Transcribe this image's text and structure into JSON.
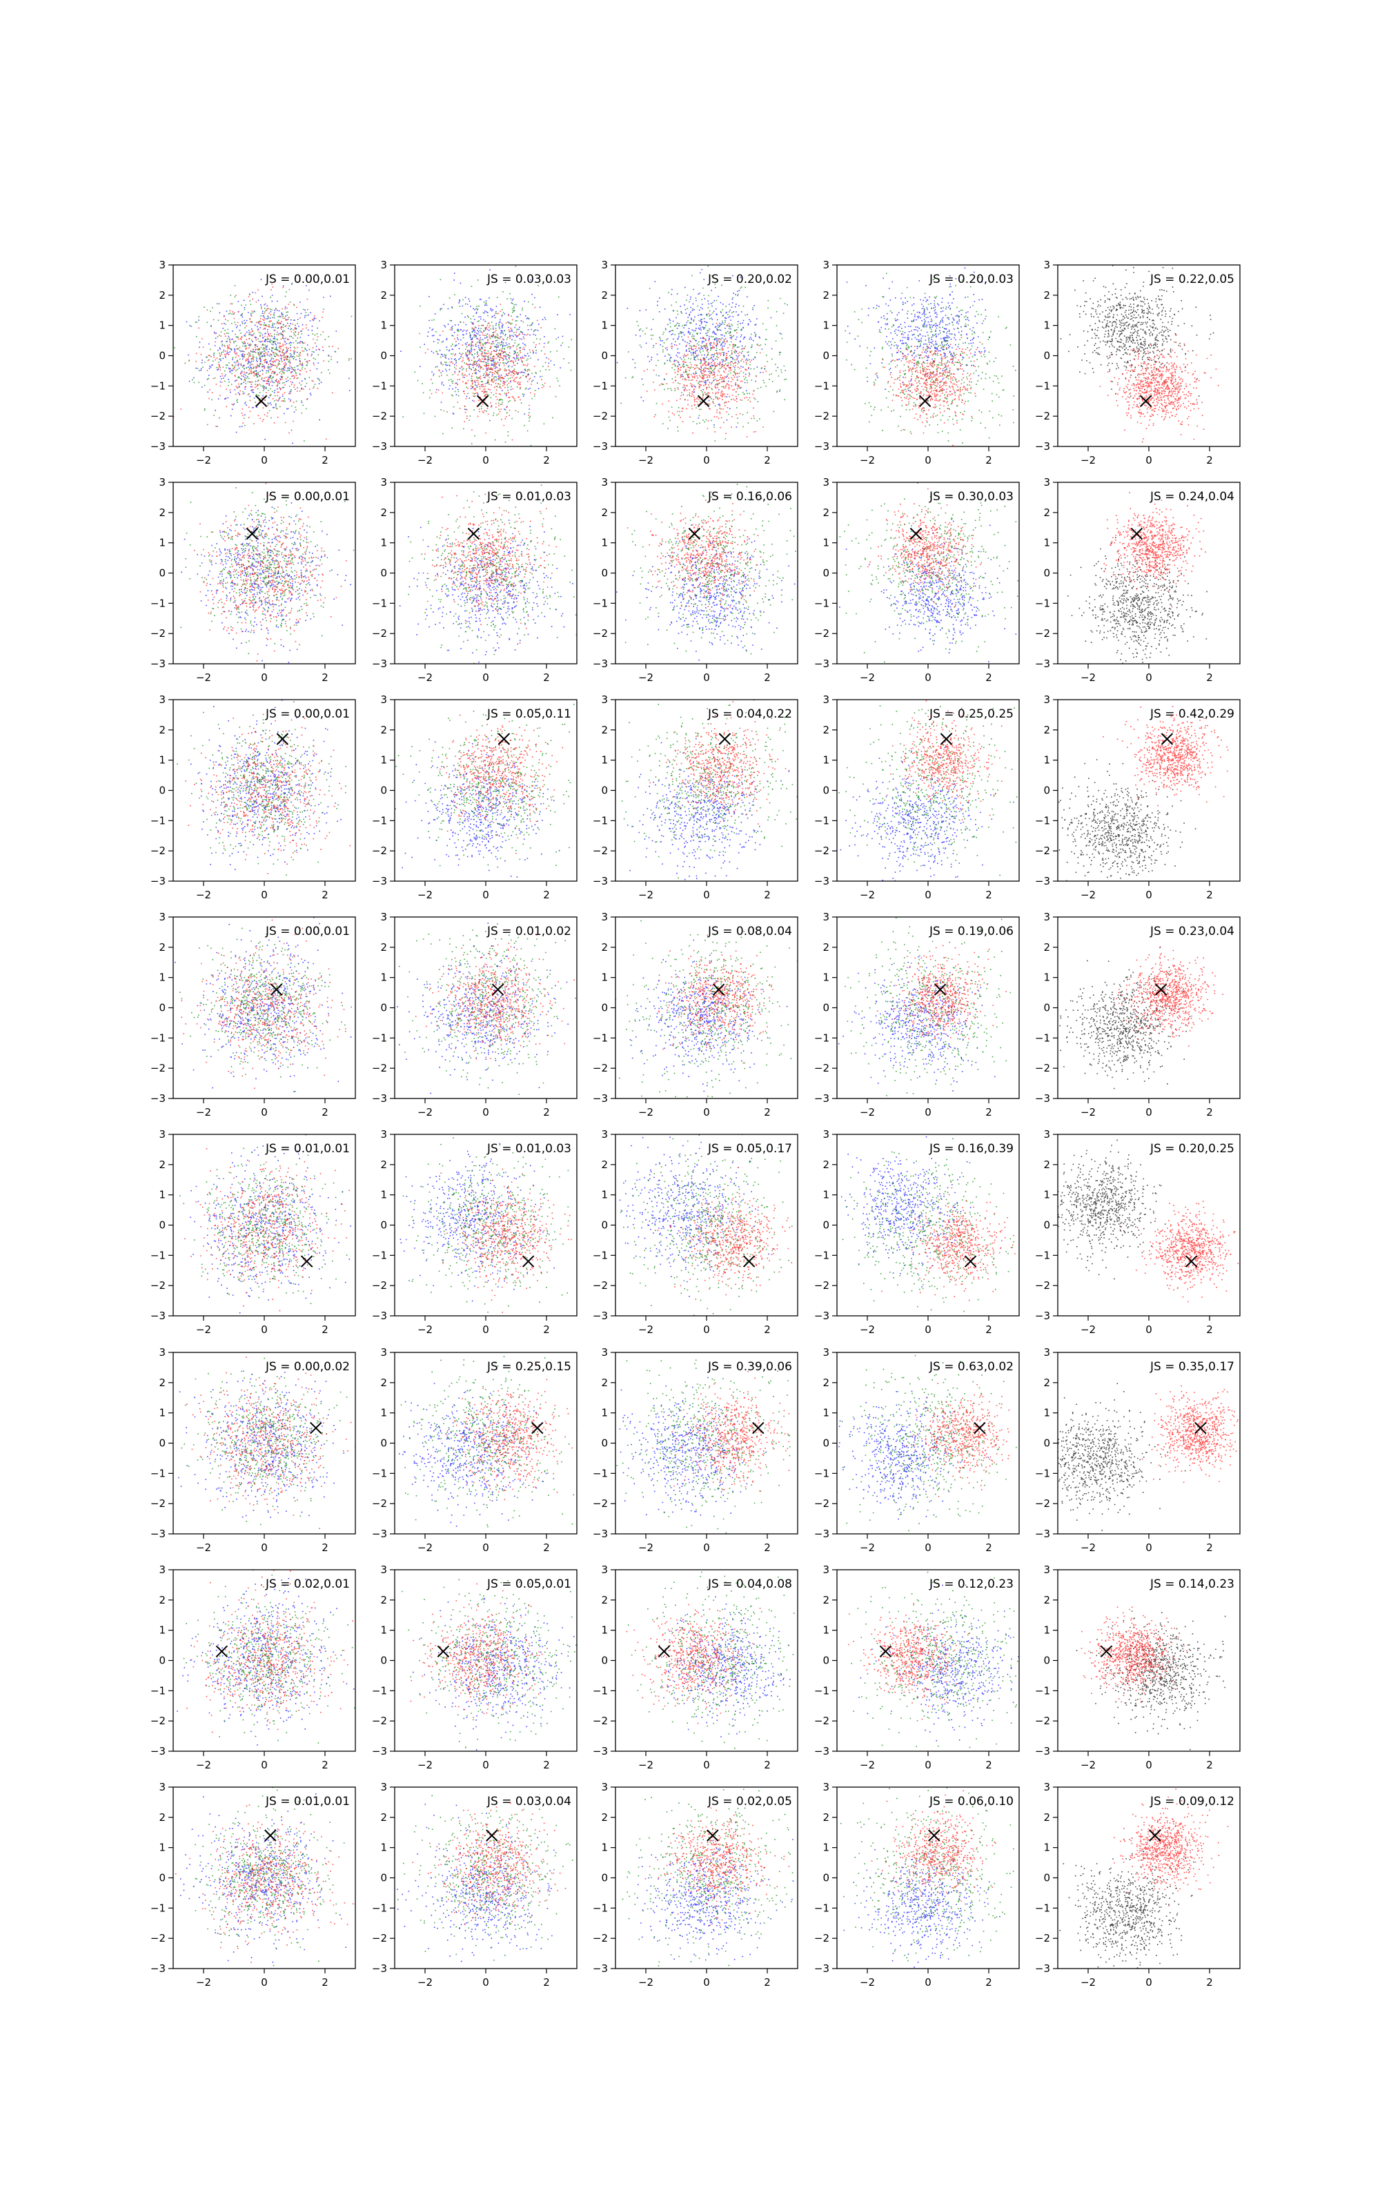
{
  "chart_data": {
    "type": "scatter",
    "layout": {
      "rows": 8,
      "cols": 5
    },
    "axes": {
      "xlim": [
        -3,
        3
      ],
      "ylim": [
        -3,
        3
      ],
      "xticks": [
        -2,
        0,
        2
      ],
      "yticks": [
        -3,
        -2,
        -1,
        0,
        1,
        2,
        3
      ],
      "grid": false
    },
    "colors": {
      "blue": "#1010ff",
      "green": "#0a8a0a",
      "red": "#ff1a1a",
      "black": "#111111",
      "marker": "#000000"
    },
    "tick_text": {
      "x": [
        "−2",
        "0",
        "2"
      ],
      "y": [
        "−3",
        "−2",
        "−1",
        "0",
        "1",
        "2",
        "3"
      ]
    },
    "rows": [
      {
        "marker": [
          -0.1,
          -1.5
        ],
        "js": [
          "JS = 0.00,0.01",
          "JS = 0.03,0.03",
          "JS = 0.20,0.02",
          "JS = 0.20,0.03",
          "JS = 0.22,0.05"
        ]
      },
      {
        "marker": [
          -0.4,
          1.3
        ],
        "js": [
          "JS = 0.00,0.01",
          "JS = 0.01,0.03",
          "JS = 0.16,0.06",
          "JS = 0.30,0.03",
          "JS = 0.24,0.04"
        ]
      },
      {
        "marker": [
          0.6,
          1.7
        ],
        "js": [
          "JS = 0.00,0.01",
          "JS = 0.05,0.11",
          "JS = 0.04,0.22",
          "JS = 0.25,0.25",
          "JS = 0.42,0.29"
        ]
      },
      {
        "marker": [
          0.4,
          0.6
        ],
        "js": [
          "JS = 0.00,0.01",
          "JS = 0.01,0.02",
          "JS = 0.08,0.04",
          "JS = 0.19,0.06",
          "JS = 0.23,0.04"
        ]
      },
      {
        "marker": [
          1.4,
          -1.2
        ],
        "js": [
          "JS = 0.01,0.01",
          "JS = 0.01,0.03",
          "JS = 0.05,0.17",
          "JS = 0.16,0.39",
          "JS = 0.20,0.25"
        ]
      },
      {
        "marker": [
          1.7,
          0.5
        ],
        "js": [
          "JS = 0.00,0.02",
          "JS = 0.25,0.15",
          "JS = 0.39,0.06",
          "JS = 0.63,0.02",
          "JS = 0.35,0.17"
        ]
      },
      {
        "marker": [
          -1.4,
          0.3
        ],
        "js": [
          "JS = 0.02,0.01",
          "JS = 0.05,0.01",
          "JS = 0.04,0.08",
          "JS = 0.12,0.23",
          "JS = 0.14,0.23"
        ]
      },
      {
        "marker": [
          0.2,
          1.4
        ],
        "js": [
          "JS = 0.01,0.01",
          "JS = 0.03,0.04",
          "JS = 0.02,0.05",
          "JS = 0.06,0.10",
          "JS = 0.09,0.12"
        ]
      }
    ]
  }
}
